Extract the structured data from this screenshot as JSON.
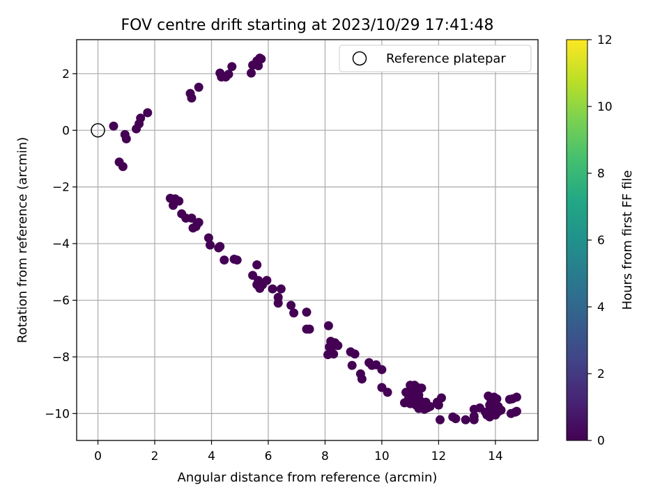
{
  "chart_data": {
    "type": "scatter",
    "title": "FOV centre drift starting at 2023/10/29 17:41:48",
    "xlabel": "Angular distance from reference (arcmin)",
    "ylabel": "Rotation from reference (arcmin)",
    "xlim": [
      -0.75,
      15.5
    ],
    "ylim": [
      -10.95,
      3.2
    ],
    "xticks": [
      0,
      2,
      4,
      6,
      8,
      10,
      12,
      14
    ],
    "yticks": [
      -10,
      -8,
      -6,
      -4,
      -2,
      0,
      2
    ],
    "grid": true,
    "legend": {
      "position": "top-right",
      "label": "Reference platepar",
      "marker": "open-circle"
    },
    "reference_point": {
      "x": 0,
      "y": 0
    },
    "colorbar": {
      "label": "Hours from first FF file",
      "colormap": "viridis",
      "range": [
        0,
        12
      ],
      "ticks": [
        0,
        2,
        4,
        6,
        8,
        10,
        12
      ]
    },
    "series": [
      {
        "columns": [
          "x",
          "y",
          "hours"
        ],
        "points": [
          [
            5.7,
            2.55
          ],
          [
            5.75,
            2.52
          ],
          [
            5.6,
            2.45
          ],
          [
            5.45,
            2.3
          ],
          [
            5.65,
            2.28
          ],
          [
            5.4,
            2.02
          ],
          [
            4.72,
            2.25
          ],
          [
            4.6,
            1.98
          ],
          [
            4.5,
            1.88
          ],
          [
            4.3,
            2.02
          ],
          [
            4.35,
            1.88
          ],
          [
            3.55,
            1.52
          ],
          [
            3.25,
            1.3
          ],
          [
            3.3,
            1.14
          ],
          [
            1.75,
            0.62
          ],
          [
            1.5,
            0.43
          ],
          [
            1.45,
            0.23
          ],
          [
            1.35,
            0.05
          ],
          [
            0.55,
            0.15
          ],
          [
            0.95,
            -0.15
          ],
          [
            1.0,
            -0.3
          ],
          [
            0.75,
            -1.12
          ],
          [
            0.88,
            -1.28
          ],
          [
            2.55,
            -2.4
          ],
          [
            2.72,
            -2.42
          ],
          [
            2.85,
            -2.5
          ],
          [
            2.65,
            -2.65
          ],
          [
            2.95,
            -2.95
          ],
          [
            3.1,
            -3.1
          ],
          [
            3.3,
            -3.1
          ],
          [
            3.5,
            -3.3
          ],
          [
            3.55,
            -3.25
          ],
          [
            3.45,
            -3.4
          ],
          [
            3.35,
            -3.45
          ],
          [
            3.9,
            -3.8
          ],
          [
            3.95,
            -4.05
          ],
          [
            4.3,
            -4.1
          ],
          [
            4.25,
            -4.15
          ],
          [
            4.45,
            -4.58
          ],
          [
            4.8,
            -4.55
          ],
          [
            4.9,
            -4.58
          ],
          [
            5.6,
            -4.75
          ],
          [
            5.45,
            -5.12
          ],
          [
            5.65,
            -5.3
          ],
          [
            5.95,
            -5.3
          ],
          [
            5.6,
            -5.45
          ],
          [
            5.8,
            -5.45
          ],
          [
            5.7,
            -5.58
          ],
          [
            6.15,
            -5.6
          ],
          [
            6.45,
            -5.6
          ],
          [
            6.35,
            -5.9
          ],
          [
            6.35,
            -6.1
          ],
          [
            6.8,
            -6.18
          ],
          [
            6.9,
            -6.45
          ],
          [
            7.35,
            -6.42
          ],
          [
            7.35,
            -7.02
          ],
          [
            7.45,
            -7.02
          ],
          [
            8.12,
            -6.9
          ],
          [
            8.2,
            -7.45
          ],
          [
            8.35,
            -7.5
          ],
          [
            8.3,
            -7.6
          ],
          [
            8.45,
            -7.6
          ],
          [
            8.15,
            -7.65
          ],
          [
            8.1,
            -7.92
          ],
          [
            8.3,
            -7.9
          ],
          [
            8.9,
            -7.82
          ],
          [
            9.05,
            -7.9
          ],
          [
            8.95,
            -8.3
          ],
          [
            9.55,
            -8.2
          ],
          [
            9.65,
            -8.3
          ],
          [
            9.8,
            -8.28
          ],
          [
            10.0,
            -8.45
          ],
          [
            9.25,
            -8.6
          ],
          [
            9.3,
            -8.78
          ],
          [
            10.0,
            -9.08
          ],
          [
            10.2,
            -9.25
          ],
          [
            11.0,
            -9.0
          ],
          [
            11.15,
            -9.0
          ],
          [
            11.25,
            -9.08
          ],
          [
            11.4,
            -9.1
          ],
          [
            10.85,
            -9.25
          ],
          [
            11.05,
            -9.3
          ],
          [
            11.2,
            -9.3
          ],
          [
            11.3,
            -9.35
          ],
          [
            10.95,
            -9.45
          ],
          [
            11.15,
            -9.5
          ],
          [
            11.35,
            -9.55
          ],
          [
            11.55,
            -9.6
          ],
          [
            10.8,
            -9.62
          ],
          [
            11.0,
            -9.65
          ],
          [
            11.2,
            -9.7
          ],
          [
            11.4,
            -9.75
          ],
          [
            11.6,
            -9.8
          ],
          [
            11.3,
            -9.82
          ],
          [
            11.5,
            -9.85
          ],
          [
            11.7,
            -9.75
          ],
          [
            12.1,
            -9.45
          ],
          [
            11.95,
            -9.6
          ],
          [
            12.0,
            -9.7
          ],
          [
            12.05,
            -10.22
          ],
          [
            12.5,
            -10.12
          ],
          [
            12.6,
            -10.18
          ],
          [
            12.95,
            -10.22
          ],
          [
            13.25,
            -10.22
          ],
          [
            13.25,
            -9.85
          ],
          [
            13.45,
            -9.8
          ],
          [
            13.25,
            -10.1
          ],
          [
            13.75,
            -9.38
          ],
          [
            13.95,
            -9.42
          ],
          [
            14.05,
            -9.48
          ],
          [
            13.85,
            -9.55
          ],
          [
            14.0,
            -9.62
          ],
          [
            13.8,
            -9.7
          ],
          [
            14.1,
            -9.75
          ],
          [
            13.95,
            -9.82
          ],
          [
            14.15,
            -9.9
          ],
          [
            13.85,
            -9.95
          ],
          [
            14.05,
            -9.98
          ],
          [
            13.7,
            -10.05
          ],
          [
            14.0,
            -10.05
          ],
          [
            13.8,
            -10.12
          ],
          [
            13.65,
            -9.95
          ],
          [
            14.2,
            -9.88
          ],
          [
            14.5,
            -9.5
          ],
          [
            14.75,
            -9.42
          ],
          [
            14.6,
            -9.48
          ],
          [
            14.55,
            -10.0
          ],
          [
            14.7,
            -9.95
          ],
          [
            14.75,
            -9.92
          ]
        ]
      }
    ]
  }
}
